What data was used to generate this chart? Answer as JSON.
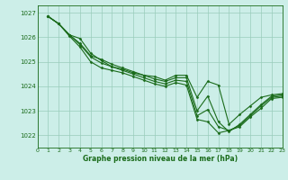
{
  "title": "Graphe pression niveau de la mer (hPa)",
  "background_color": "#cceee8",
  "grid_color": "#99ccbb",
  "line_color": "#1a6b1a",
  "marker_color": "#1a6b1a",
  "xlim": [
    0,
    23
  ],
  "ylim": [
    1021.5,
    1027.3
  ],
  "yticks": [
    1022,
    1023,
    1024,
    1025,
    1026,
    1027
  ],
  "xticks": [
    0,
    1,
    2,
    3,
    4,
    5,
    6,
    7,
    8,
    9,
    10,
    11,
    12,
    13,
    14,
    15,
    16,
    17,
    18,
    19,
    20,
    21,
    22,
    23
  ],
  "series": [
    [
      1026.85,
      1026.55,
      1026.1,
      1025.95,
      1025.35,
      1025.05,
      1024.8,
      1024.7,
      1024.55,
      1024.45,
      1024.4,
      1024.25,
      1024.45,
      1024.45,
      1023.55,
      1024.2,
      1024.05,
      1022.45,
      1022.85,
      1023.2,
      1023.55,
      1023.65,
      1023.7
    ],
    [
      1026.85,
      1026.55,
      1026.1,
      1025.75,
      1025.25,
      1025.1,
      1024.9,
      1024.75,
      1024.6,
      1024.45,
      1024.3,
      1024.2,
      1024.35,
      1024.35,
      1023.0,
      1023.6,
      1022.55,
      1022.15,
      1022.45,
      1022.85,
      1023.25,
      1023.6,
      1023.65
    ],
    [
      1026.85,
      1026.55,
      1026.1,
      1025.7,
      1025.2,
      1024.95,
      1024.8,
      1024.65,
      1024.5,
      1024.35,
      1024.2,
      1024.1,
      1024.25,
      1024.2,
      1022.8,
      1023.05,
      1022.35,
      1022.2,
      1022.4,
      1022.8,
      1023.2,
      1023.55,
      1023.6
    ],
    [
      1026.85,
      1026.55,
      1026.05,
      1025.6,
      1025.0,
      1024.75,
      1024.65,
      1024.55,
      1024.4,
      1024.25,
      1024.1,
      1024.0,
      1024.15,
      1024.05,
      1022.65,
      1022.55,
      1022.1,
      1022.2,
      1022.35,
      1022.75,
      1023.1,
      1023.5,
      1023.55
    ]
  ]
}
